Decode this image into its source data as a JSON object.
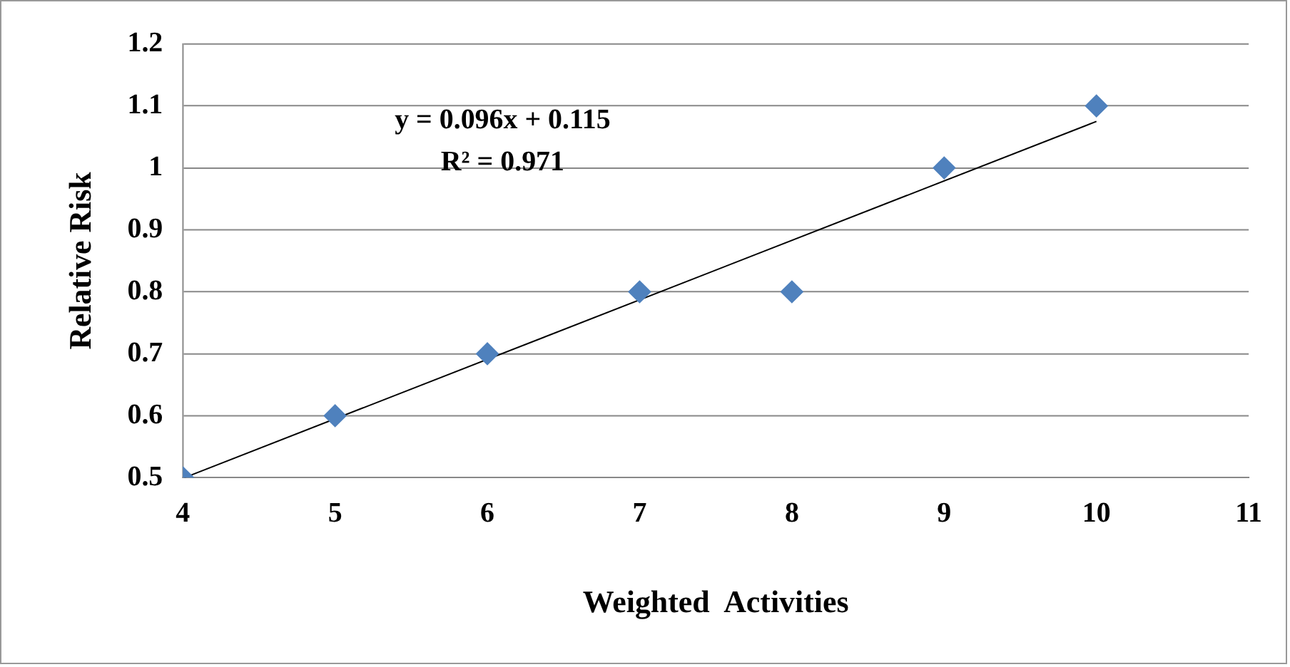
{
  "chart_data": {
    "type": "scatter",
    "xlabel": "Weighted  Activities",
    "ylabel": "Relative Risk",
    "x": [
      4,
      5,
      6,
      7,
      8,
      9,
      10
    ],
    "series": [
      {
        "color": "#4f81bd",
        "marker": "diamond",
        "values": [
          0.5,
          0.6,
          0.7,
          0.8,
          0.8,
          1.0,
          1.1
        ]
      },
      {
        "type": "line",
        "color": "#000000",
        "marker": "none",
        "x": [
          4.01,
          10
        ],
        "values": [
          0.5,
          1.075
        ]
      }
    ],
    "xlim": [
      4,
      11
    ],
    "xticks": [
      4,
      5,
      6,
      7,
      8,
      9,
      10,
      11
    ],
    "ylim": [
      0.5,
      1.2
    ],
    "yticks": [
      0.5,
      0.6,
      0.7,
      0.8,
      0.9,
      1,
      1.1,
      1.2
    ],
    "grid": "y",
    "legend": false,
    "annotations": [
      "y = 0.096x + 0.115",
      "R² = 0.971"
    ]
  }
}
